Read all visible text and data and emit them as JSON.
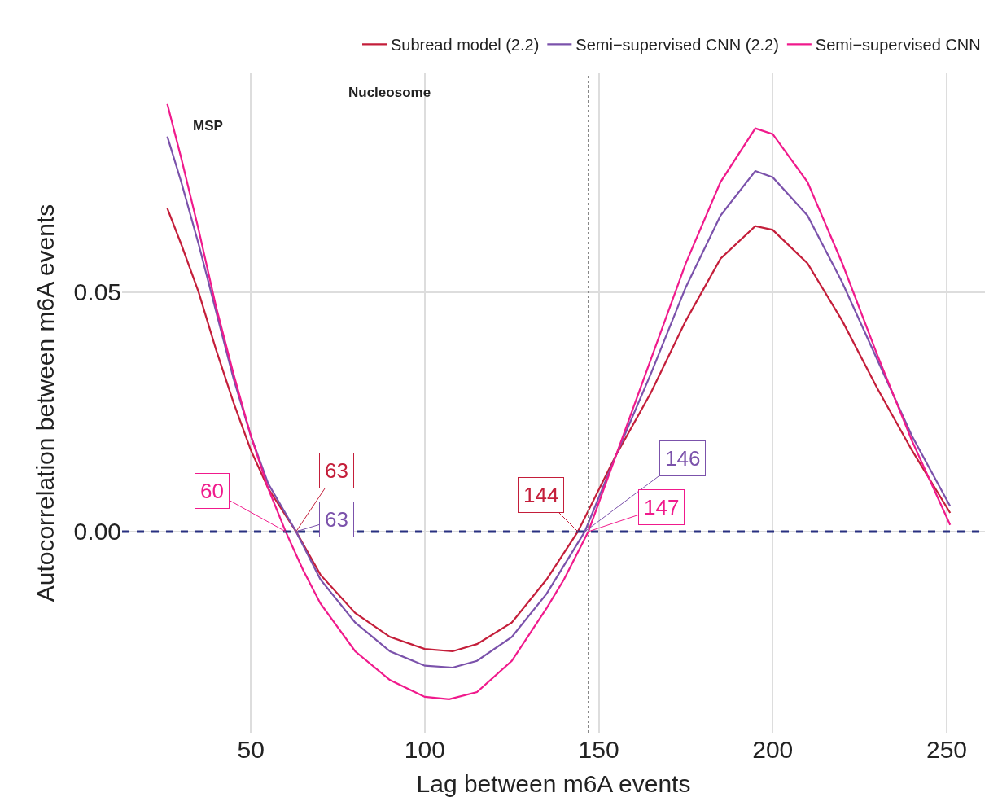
{
  "chart_data": {
    "type": "line",
    "xlabel": "Lag between m6A events",
    "ylabel": "Autocorrelation between m6A events",
    "xlim": [
      13,
      261
    ],
    "xticks": [
      50,
      100,
      150,
      200,
      250
    ],
    "ylim": [
      -0.042,
      0.0957
    ],
    "yticks": [
      {
        "value": 0.05,
        "label": "0.05"
      },
      {
        "value": 0,
        "label": "0.00"
      }
    ],
    "grid": true,
    "legend": "top",
    "line_style": "solid",
    "marker": "none",
    "series": [
      {
        "name": "Subread model (2.2)",
        "color": "#c41e3a",
        "x": [
          26,
          30,
          35,
          40,
          45,
          50,
          55,
          63,
          70,
          80,
          90,
          100,
          108,
          115,
          125,
          135,
          144,
          155,
          165,
          175,
          185,
          195,
          200,
          210,
          220,
          230,
          240,
          251
        ],
        "values": [
          0.0675,
          0.06,
          0.05,
          0.038,
          0.027,
          0.017,
          0.009,
          0.0,
          -0.009,
          -0.017,
          -0.022,
          -0.0245,
          -0.025,
          -0.0235,
          -0.019,
          -0.01,
          0.0,
          0.016,
          0.029,
          0.044,
          0.057,
          0.0638,
          0.063,
          0.056,
          0.044,
          0.03,
          0.017,
          0.0039
        ]
      },
      {
        "name": "Semi−supervised CNN (2.2)",
        "color": "#7b52ab",
        "x": [
          26,
          30,
          35,
          40,
          45,
          50,
          55,
          63,
          70,
          80,
          90,
          100,
          108,
          115,
          125,
          135,
          146,
          155,
          165,
          175,
          185,
          195,
          200,
          210,
          220,
          230,
          240,
          251
        ],
        "values": [
          0.0825,
          0.073,
          0.06,
          0.046,
          0.032,
          0.02,
          0.01,
          0.0,
          -0.01,
          -0.019,
          -0.025,
          -0.028,
          -0.0284,
          -0.027,
          -0.022,
          -0.013,
          0.0,
          0.016,
          0.033,
          0.051,
          0.066,
          0.0753,
          0.074,
          0.066,
          0.052,
          0.036,
          0.02,
          0.0053
        ]
      },
      {
        "name": "Semi−supervised CNN",
        "color": "#f01a8c",
        "x": [
          26,
          30,
          35,
          40,
          45,
          50,
          55,
          60,
          65,
          70,
          80,
          90,
          100,
          107,
          115,
          125,
          135,
          140,
          147,
          155,
          165,
          175,
          185,
          195,
          200,
          210,
          220,
          230,
          240,
          251
        ],
        "values": [
          0.0893,
          0.078,
          0.063,
          0.047,
          0.033,
          0.02,
          0.009,
          0.0,
          -0.008,
          -0.015,
          -0.025,
          -0.031,
          -0.0345,
          -0.035,
          -0.0335,
          -0.027,
          -0.016,
          -0.01,
          0.0,
          0.016,
          0.036,
          0.056,
          0.073,
          0.0842,
          0.083,
          0.073,
          0.056,
          0.037,
          0.019,
          0.0014
        ]
      }
    ],
    "ref_lines": [
      {
        "axis": "y",
        "value": 0,
        "color": "#283080",
        "line_style": "dashed"
      },
      {
        "axis": "x",
        "value": 147,
        "color": "#888888",
        "line_style": "dotted"
      }
    ],
    "annotations": [
      "Nucleosome",
      "MSP",
      {
        "text": "60",
        "x": 60,
        "y": 0
      },
      {
        "text": "63",
        "x": 63,
        "y": 0
      },
      {
        "text": "63",
        "x": 63,
        "y": 0
      },
      {
        "text": "144",
        "x": 144,
        "y": 0
      },
      {
        "text": "146",
        "x": 146,
        "y": 0
      },
      {
        "text": "147",
        "x": 147,
        "y": 0
      }
    ]
  }
}
